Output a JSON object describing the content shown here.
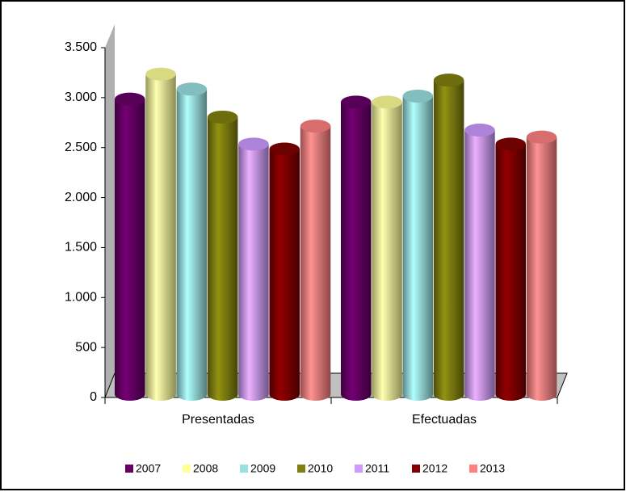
{
  "chart_data": {
    "type": "bar",
    "categories": [
      "Presentadas",
      "Efectuadas"
    ],
    "series": [
      {
        "name": "2007",
        "color": "#660066",
        "values": [
          3050,
          3020
        ]
      },
      {
        "name": "2008",
        "color": "#ffff99",
        "values": [
          3300,
          3020
        ]
      },
      {
        "name": "2009",
        "color": "#99e0e0",
        "values": [
          3150,
          3080
        ]
      },
      {
        "name": "2010",
        "color": "#808010",
        "values": [
          2870,
          3240
        ]
      },
      {
        "name": "2011",
        "color": "#cc99ff",
        "values": [
          2600,
          2740
        ]
      },
      {
        "name": "2012",
        "color": "#800000",
        "values": [
          2550,
          2600
        ]
      },
      {
        "name": "2013",
        "color": "#ff8080",
        "values": [
          2780,
          2670
        ]
      }
    ],
    "ylim": [
      0,
      3500
    ],
    "yticks": [
      0,
      500,
      {
        "value": 1000,
        "label": "1.000"
      },
      {
        "value": 1500,
        "label": "1.500"
      },
      {
        "value": 2000,
        "label": "2.000"
      },
      {
        "value": 2500,
        "label": "2.500"
      },
      {
        "value": 3000,
        "label": "3.000"
      },
      {
        "value": 3500,
        "label": "3.500"
      }
    ],
    "legend": "bottom"
  }
}
